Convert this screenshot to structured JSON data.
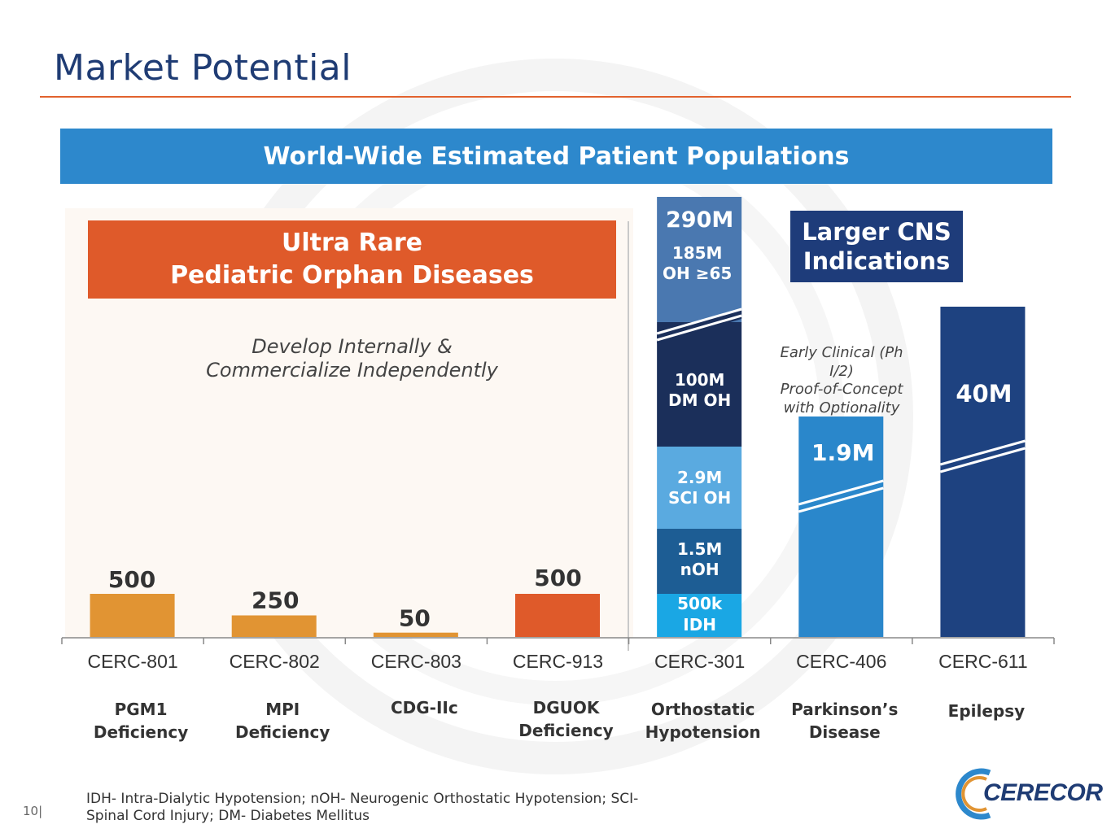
{
  "page": {
    "title": "Market Potential",
    "banner": "World-Wide Estimated Patient Populations",
    "left_header_line1": "Ultra Rare",
    "left_header_line2": "Pediatric Orphan Diseases",
    "left_note_line1": "Develop Internally &",
    "left_note_line2": "Commercialize Independently",
    "right_header_line1": "Larger CNS",
    "right_header_line2": "Indications",
    "early_note_line1": "Early Clinical (Ph",
    "early_note_line2": "I/2)",
    "early_note_line3": "Proof-of-Concept",
    "early_note_line4": "with Optionality",
    "footnote_line1": "IDH- Intra-Dialytic Hypotension; nOH- Neurogenic Orthostatic Hypotension; SCI-",
    "footnote_line2": "Spinal Cord Injury; DM- Diabetes Mellitus",
    "page_number": "10|",
    "logo_text": "CERECOR"
  },
  "colors": {
    "orange_light": "#e19433",
    "orange_dark": "#df5a2a",
    "blue_301_top": "#4a78b0",
    "blue_301_dm": "#1b2f5a",
    "blue_301_sci": "#5aaae0",
    "blue_301_noh": "#1d5d94",
    "blue_301_idh": "#1aa7e4",
    "blue_406": "#2a87cb",
    "blue_611": "#1e4280"
  },
  "chart_data": {
    "type": "bar",
    "title": "World-Wide Estimated Patient Populations",
    "categories": [
      "CERC-801",
      "CERC-802",
      "CERC-803",
      "CERC-913",
      "CERC-301",
      "CERC-406",
      "CERC-611"
    ],
    "indications": [
      [
        "PGM1",
        "Deficiency"
      ],
      [
        "MPI",
        "Deficiency"
      ],
      [
        "CDG-IIc",
        ""
      ],
      [
        "DGUOK",
        "Deficiency"
      ],
      [
        "Orthostatic",
        "Hypotension"
      ],
      [
        "Parkinson’s",
        "Disease"
      ],
      [
        "Epilepsy",
        ""
      ]
    ],
    "values": [
      500,
      250,
      50,
      500,
      290000000,
      1900000,
      40000000
    ],
    "value_labels": [
      "500",
      "250",
      "50",
      "500",
      "290M",
      "1.9M",
      "40M"
    ],
    "axis_break_on": [
      "CERC-301",
      "CERC-406",
      "CERC-611"
    ],
    "stacked_segments_CERC-301": [
      {
        "label1": "500k",
        "label2": "IDH",
        "value": 500000
      },
      {
        "label1": "1.5M",
        "label2": "nOH",
        "value": 1500000
      },
      {
        "label1": "2.9M",
        "label2": "SCI OH",
        "value": 2900000
      },
      {
        "label1": "100M",
        "label2": "DM OH",
        "value": 100000000
      },
      {
        "label1": "185M",
        "label2": "OH ≥65",
        "value": 185000000
      }
    ],
    "groups": [
      {
        "name": "Ultra Rare Pediatric Orphan Diseases",
        "categories": [
          "CERC-801",
          "CERC-802",
          "CERC-803",
          "CERC-913"
        ]
      },
      {
        "name": "Larger CNS Indications",
        "categories": [
          "CERC-301",
          "CERC-406",
          "CERC-611"
        ]
      }
    ]
  }
}
